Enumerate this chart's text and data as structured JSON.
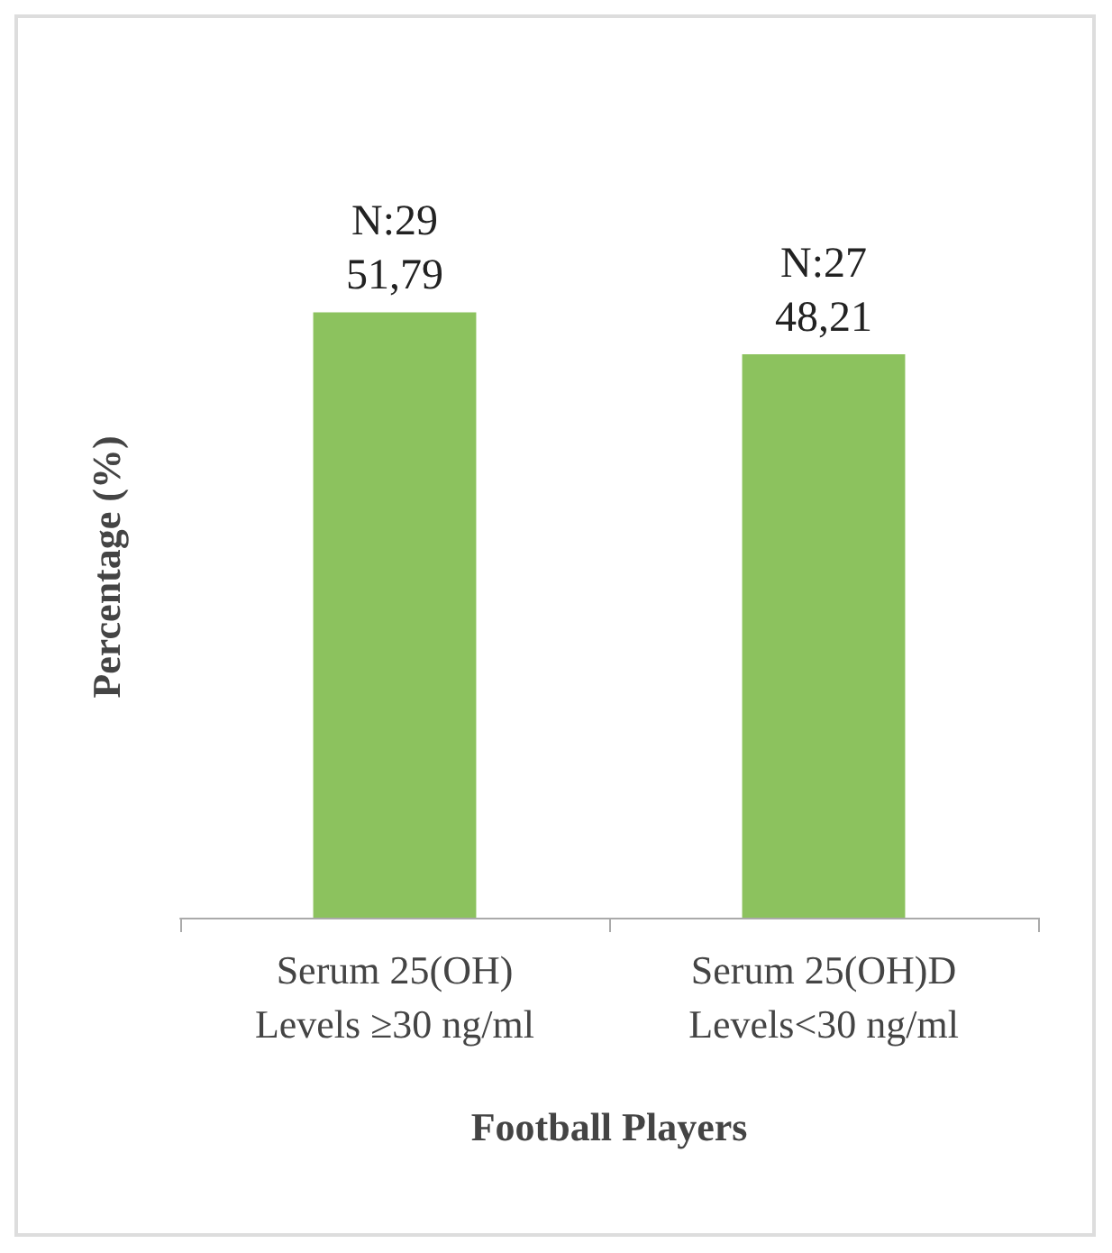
{
  "chart_data": {
    "type": "bar",
    "xlabel": "Football Players",
    "ylabel": "Percentage (%)",
    "categories": [
      "Serum 25(OH)\nLevels ≥30 ng/ml",
      "Serum 25(OH)D\nLevels<30 ng/ml"
    ],
    "values": [
      51.79,
      48.21
    ],
    "value_labels": [
      "N:29\n51,79",
      "N:27\n48,21"
    ],
    "color": "#8cc25e"
  }
}
